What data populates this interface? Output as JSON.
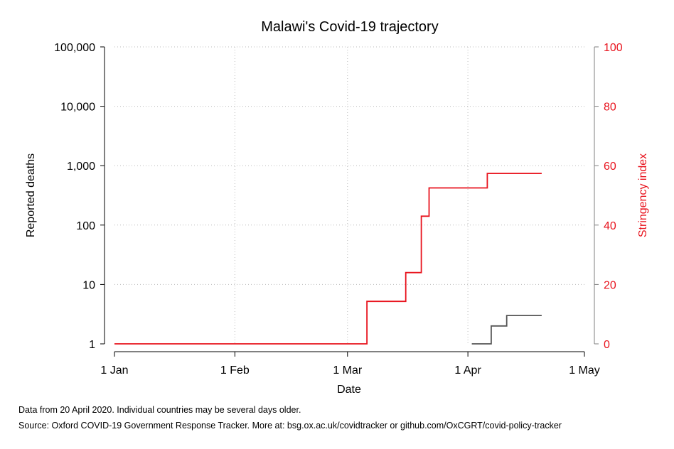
{
  "chart_data": {
    "type": "line",
    "title": "Malawi's Covid-19 trajectory",
    "xlabel": "Date",
    "ylabel_left": "Reported deaths",
    "ylabel_right": "Stringency index",
    "x_domain": [
      "2020-01-01",
      "2020-05-01"
    ],
    "x_ticks": [
      {
        "date": "2020-01-01",
        "label": "1 Jan"
      },
      {
        "date": "2020-02-01",
        "label": "1 Feb"
      },
      {
        "date": "2020-03-01",
        "label": "1 Mar"
      },
      {
        "date": "2020-04-01",
        "label": "1 Apr"
      },
      {
        "date": "2020-05-01",
        "label": "1 May"
      }
    ],
    "y_left": {
      "scale": "log",
      "range": [
        1,
        100000
      ],
      "ticks": [
        {
          "value": 1,
          "label": "1"
        },
        {
          "value": 10,
          "label": "10"
        },
        {
          "value": 100,
          "label": "100"
        },
        {
          "value": 1000,
          "label": "1,000"
        },
        {
          "value": 10000,
          "label": "10,000"
        },
        {
          "value": 100000,
          "label": "100,000"
        }
      ]
    },
    "y_right": {
      "scale": "linear",
      "range": [
        0,
        100
      ],
      "ticks": [
        {
          "value": 0,
          "label": "0"
        },
        {
          "value": 20,
          "label": "20"
        },
        {
          "value": 40,
          "label": "40"
        },
        {
          "value": 60,
          "label": "60"
        },
        {
          "value": 80,
          "label": "80"
        },
        {
          "value": 100,
          "label": "100"
        }
      ]
    },
    "grid": true,
    "series": [
      {
        "axis": "left",
        "color": "#555555",
        "step": true,
        "points": [
          {
            "x": "2020-04-02",
            "y": 1
          },
          {
            "x": "2020-04-07",
            "y": 2
          },
          {
            "x": "2020-04-11",
            "y": 3
          },
          {
            "x": "2020-04-20",
            "y": 3
          }
        ]
      },
      {
        "axis": "right",
        "color": "#e8131d",
        "step": true,
        "points": [
          {
            "x": "2020-01-01",
            "y": 0
          },
          {
            "x": "2020-03-06",
            "y": 14.3
          },
          {
            "x": "2020-03-16",
            "y": 24
          },
          {
            "x": "2020-03-20",
            "y": 43
          },
          {
            "x": "2020-03-22",
            "y": 52.5
          },
          {
            "x": "2020-04-06",
            "y": 57.4
          },
          {
            "x": "2020-04-20",
            "y": 57.4
          }
        ]
      }
    ]
  },
  "notes": {
    "line1": "Data from 20 April 2020. Individual countries may be several days older.",
    "line2": "Source: Oxford COVID-19 Government Response Tracker. More at: bsg.ox.ac.uk/covidtracker or github.com/OxCGRT/covid-policy-tracker"
  }
}
